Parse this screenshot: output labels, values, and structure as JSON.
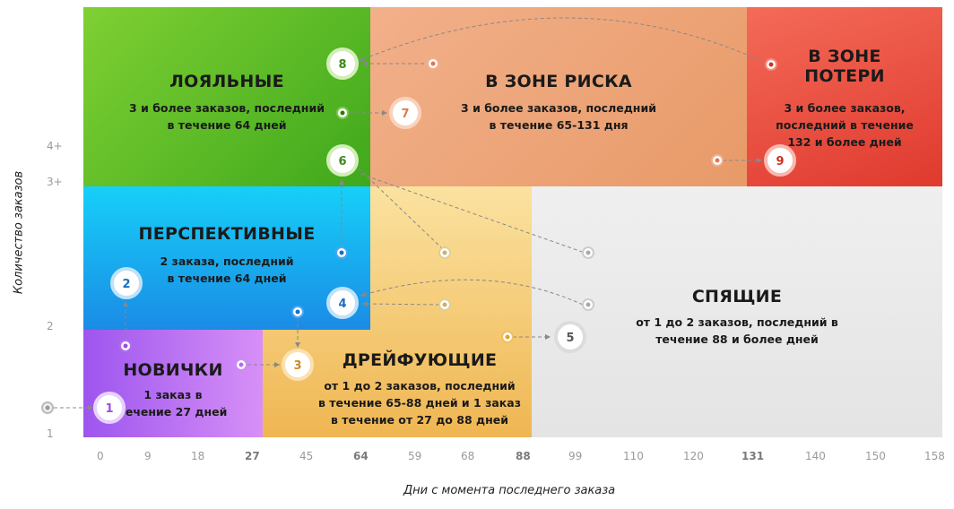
{
  "y_axis": {
    "title": "Количество заказов",
    "ticks": [
      "4+",
      "3+",
      "2",
      "1"
    ]
  },
  "x_axis": {
    "title": "Дни с момента последнего заказа",
    "ticks": [
      "0",
      "9",
      "18",
      "27",
      "45",
      "64",
      "59",
      "68",
      "88",
      "99",
      "110",
      "120",
      "131",
      "140",
      "150",
      "158"
    ],
    "bold_ticks": [
      "27",
      "64",
      "88",
      "131"
    ]
  },
  "segments": {
    "loyal": {
      "title": "ЛОЯЛЬНЫЕ",
      "desc": "3 и более заказов, последний\nв течение 64 дней",
      "color_from": "#3faa1e",
      "color_to": "#7fd033"
    },
    "risk": {
      "title": "В ЗОНЕ РИСКА",
      "desc": "3 и более заказов, последний\nв течение 65-131 дня",
      "color_from": "#e8a070",
      "color_to": "#f4b48a"
    },
    "loss": {
      "title": "В ЗОНЕ\nПОТЕРИ",
      "desc": "3 и более заказов,\nпоследний в течение\n132 и более  дней",
      "color_from": "#f05a4a",
      "color_to": "#e0392c"
    },
    "promising": {
      "title": "ПЕРСПЕКТИВНЫЕ",
      "desc": "2 заказа, последний\nв течение 64 дней",
      "color_from": "#1ec8f5",
      "color_to": "#1a8de6"
    },
    "sleeping": {
      "title": "СПЯЩИЕ",
      "desc": "от 1 до 2 заказов, последний в\nтечение 88 и более дней",
      "color_from": "#ececec",
      "color_to": "#e6e6e6"
    },
    "drifting": {
      "title": "ДРЕЙФУЮЩИЕ",
      "desc": "от 1 до 2 заказов, последний\nв течение 65-88 дней и 1 заказ\nв течение от 27 до 88 дней",
      "color_from": "#f8d990",
      "color_to": "#f0bb5a"
    },
    "newbies": {
      "title": "НОВИЧКИ",
      "desc": "1 заказ в\nтечение 27 дней",
      "color_from": "#a45bf0",
      "color_to": "#d28af5"
    }
  },
  "nodes": [
    "1",
    "2",
    "3",
    "4",
    "5",
    "6",
    "7",
    "8",
    "9"
  ],
  "colors": {
    "purple": "#9b4fe0",
    "blue": "#1a8de6",
    "orange": "#f0a030",
    "green": "#4faa22",
    "coral": "#e87a5a",
    "red": "#e03a30",
    "grey": "#c8c8c8",
    "dash": "#888888"
  }
}
